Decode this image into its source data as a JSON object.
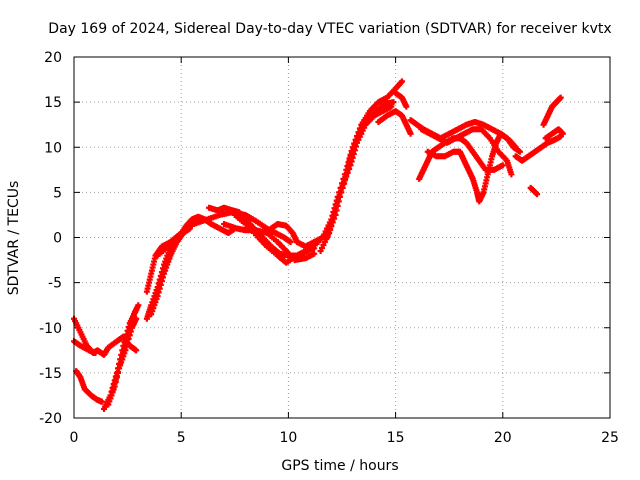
{
  "chart_data": {
    "type": "scatter",
    "title": "Day 169 of 2024, Sidereal Day-to-day VTEC variation (SDTVAR) for receiver kvtx",
    "xlabel": "GPS time / hours",
    "ylabel": "SDTVAR / TECUs",
    "xlim": [
      0,
      25
    ],
    "ylim": [
      -20,
      20
    ],
    "xticks": [
      0,
      5,
      10,
      15,
      20,
      25
    ],
    "yticks": [
      -20,
      -15,
      -10,
      -5,
      0,
      5,
      10,
      15,
      20
    ],
    "xtick_labels": [
      "0",
      "5",
      "10",
      "15",
      "20",
      "25"
    ],
    "ytick_labels": [
      "-20",
      "-15",
      "-10",
      "-5",
      "0",
      "5",
      "10",
      "15",
      "20"
    ],
    "grid": true,
    "marker_color": "#ff0000",
    "series": [
      {
        "values": [
          [
            0.0,
            -9.0
          ],
          [
            0.3,
            -10.5
          ],
          [
            0.6,
            -12.0
          ],
          [
            0.9,
            -12.8
          ],
          [
            1.1,
            -12.5
          ],
          [
            1.4,
            -13.0
          ],
          [
            1.6,
            -12.2
          ],
          [
            2.0,
            -11.5
          ],
          [
            2.3,
            -11.0
          ],
          [
            2.6,
            -12.0
          ],
          [
            2.9,
            -12.5
          ]
        ]
      },
      {
        "values": [
          [
            0.0,
            -11.5
          ],
          [
            0.3,
            -12.0
          ],
          [
            0.7,
            -12.5
          ],
          [
            1.0,
            -12.8
          ]
        ]
      },
      {
        "values": [
          [
            0.1,
            -14.8
          ],
          [
            0.3,
            -15.5
          ],
          [
            0.5,
            -16.8
          ],
          [
            0.8,
            -17.5
          ],
          [
            1.1,
            -18.0
          ],
          [
            1.3,
            -18.2
          ]
        ]
      },
      {
        "values": [
          [
            1.4,
            -19.0
          ],
          [
            1.7,
            -17.5
          ],
          [
            2.0,
            -15.0
          ],
          [
            2.3,
            -12.0
          ],
          [
            2.6,
            -9.5
          ],
          [
            2.9,
            -8.0
          ]
        ]
      },
      {
        "values": [
          [
            1.6,
            -18.5
          ],
          [
            1.9,
            -16.5
          ],
          [
            2.2,
            -13.5
          ],
          [
            2.5,
            -11.0
          ],
          [
            2.8,
            -8.5
          ],
          [
            3.0,
            -7.5
          ]
        ]
      },
      {
        "values": [
          [
            1.8,
            -17.0
          ],
          [
            2.1,
            -14.5
          ],
          [
            2.4,
            -12.5
          ],
          [
            2.7,
            -10.0
          ],
          [
            2.9,
            -9.0
          ]
        ]
      },
      {
        "values": [
          [
            3.4,
            -9.0
          ],
          [
            3.6,
            -7.5
          ],
          [
            3.9,
            -5.5
          ],
          [
            4.2,
            -3.0
          ],
          [
            4.5,
            -1.0
          ],
          [
            4.8,
            0.0
          ]
        ]
      },
      {
        "values": [
          [
            3.6,
            -8.5
          ],
          [
            3.9,
            -6.5
          ],
          [
            4.2,
            -4.0
          ],
          [
            4.5,
            -2.0
          ],
          [
            4.8,
            -0.5
          ],
          [
            5.1,
            0.5
          ],
          [
            5.4,
            1.0
          ]
        ]
      },
      {
        "values": [
          [
            3.4,
            -6.0
          ],
          [
            3.6,
            -4.0
          ],
          [
            3.8,
            -2.0
          ],
          [
            4.1,
            -1.0
          ],
          [
            4.5,
            -0.5
          ],
          [
            4.9,
            0.3
          ],
          [
            5.3,
            1.0
          ]
        ]
      },
      {
        "values": [
          [
            4.0,
            -5.0
          ],
          [
            4.3,
            -3.0
          ],
          [
            4.6,
            -1.2
          ],
          [
            4.9,
            0.0
          ],
          [
            5.2,
            1.2
          ],
          [
            5.5,
            2.0
          ],
          [
            5.8,
            2.3
          ],
          [
            6.1,
            2.0
          ],
          [
            6.4,
            1.5
          ],
          [
            6.8,
            1.0
          ],
          [
            7.2,
            0.5
          ],
          [
            7.5,
            1.0
          ]
        ]
      },
      {
        "values": [
          [
            3.9,
            -2.0
          ],
          [
            4.4,
            -1.0
          ],
          [
            5.0,
            0.5
          ],
          [
            5.6,
            1.5
          ],
          [
            6.2,
            2.0
          ],
          [
            6.8,
            2.5
          ],
          [
            7.4,
            2.8
          ],
          [
            8.0,
            2.5
          ],
          [
            8.5,
            1.8
          ],
          [
            9.0,
            1.0
          ],
          [
            9.4,
            0.5
          ],
          [
            9.8,
            0.0
          ],
          [
            10.1,
            -0.5
          ]
        ]
      },
      {
        "values": [
          [
            6.3,
            3.3
          ],
          [
            6.7,
            3.0
          ],
          [
            7.0,
            3.3
          ],
          [
            7.4,
            3.0
          ],
          [
            7.7,
            2.8
          ],
          [
            8.0,
            2.0
          ],
          [
            8.4,
            1.0
          ],
          [
            8.8,
            0.0
          ],
          [
            9.2,
            -1.0
          ],
          [
            9.6,
            -1.8
          ],
          [
            10.0,
            -2.0
          ],
          [
            10.4,
            -2.0
          ],
          [
            10.8,
            -1.5
          ],
          [
            11.2,
            -1.2
          ]
        ]
      },
      {
        "values": [
          [
            7.0,
            1.5
          ],
          [
            7.6,
            1.0
          ],
          [
            8.0,
            0.8
          ],
          [
            8.5,
            0.8
          ],
          [
            9.0,
            0.5
          ],
          [
            9.5,
            -0.5
          ],
          [
            9.9,
            -1.5
          ],
          [
            10.3,
            -2.5
          ],
          [
            10.8,
            -2.3
          ],
          [
            11.2,
            -1.8
          ]
        ]
      },
      {
        "values": [
          [
            7.5,
            2.5
          ],
          [
            8.0,
            1.5
          ],
          [
            8.6,
            0.0
          ],
          [
            9.0,
            -1.0
          ],
          [
            9.5,
            -2.0
          ],
          [
            9.9,
            -2.8
          ],
          [
            10.4,
            -2.0
          ],
          [
            10.9,
            -1.5
          ],
          [
            11.4,
            -0.5
          ]
        ]
      },
      {
        "values": [
          [
            9.2,
            1.0
          ],
          [
            9.5,
            1.5
          ],
          [
            9.9,
            1.3
          ],
          [
            10.2,
            0.5
          ],
          [
            10.4,
            -0.5
          ],
          [
            10.8,
            -1.0
          ],
          [
            11.2,
            -0.5
          ],
          [
            11.6,
            0.0
          ],
          [
            12.0,
            2.0
          ],
          [
            12.3,
            4.5
          ],
          [
            12.7,
            7.5
          ],
          [
            13.0,
            10.0
          ],
          [
            13.4,
            12.5
          ],
          [
            13.8,
            14.0
          ],
          [
            14.2,
            15.0
          ],
          [
            14.6,
            15.5
          ],
          [
            15.0,
            16.5
          ],
          [
            15.3,
            17.3
          ]
        ]
      },
      {
        "values": [
          [
            11.5,
            -1.5
          ],
          [
            11.9,
            0.5
          ],
          [
            12.2,
            3.0
          ],
          [
            12.6,
            6.0
          ],
          [
            12.9,
            9.0
          ],
          [
            13.3,
            11.5
          ],
          [
            13.7,
            13.0
          ],
          [
            14.1,
            14.0
          ],
          [
            14.5,
            14.8
          ],
          [
            14.9,
            15.0
          ]
        ]
      },
      {
        "values": [
          [
            11.8,
            0.0
          ],
          [
            12.2,
            2.5
          ],
          [
            12.5,
            5.5
          ],
          [
            12.9,
            8.0
          ],
          [
            13.2,
            10.5
          ],
          [
            13.6,
            12.5
          ],
          [
            14.0,
            13.5
          ],
          [
            14.4,
            14.0
          ],
          [
            14.8,
            14.5
          ]
        ]
      },
      {
        "values": [
          [
            14.2,
            12.8
          ],
          [
            14.6,
            13.5
          ],
          [
            15.0,
            14.0
          ],
          [
            15.3,
            13.5
          ],
          [
            15.5,
            12.5
          ],
          [
            15.7,
            11.5
          ]
        ]
      },
      {
        "values": [
          [
            15.5,
            14.5
          ],
          [
            15.3,
            15.5
          ],
          [
            15.0,
            16.0
          ]
        ]
      },
      {
        "values": [
          [
            15.7,
            13.0
          ],
          [
            16.0,
            12.5
          ],
          [
            16.3,
            12.0
          ],
          [
            16.7,
            11.5
          ],
          [
            17.1,
            11.0
          ],
          [
            17.5,
            11.5
          ],
          [
            17.9,
            12.0
          ],
          [
            18.3,
            12.5
          ],
          [
            18.7,
            12.8
          ],
          [
            19.1,
            12.5
          ],
          [
            19.5,
            12.0
          ],
          [
            19.9,
            11.5
          ],
          [
            20.3,
            10.8
          ],
          [
            20.6,
            10.0
          ]
        ]
      },
      {
        "values": [
          [
            16.1,
            6.5
          ],
          [
            16.3,
            7.5
          ],
          [
            16.5,
            8.5
          ],
          [
            16.7,
            9.5
          ],
          [
            17.0,
            10.0
          ],
          [
            17.3,
            10.5
          ],
          [
            17.7,
            11.0
          ],
          [
            18.0,
            11.0
          ],
          [
            18.3,
            10.5
          ],
          [
            18.6,
            9.5
          ],
          [
            18.9,
            8.5
          ],
          [
            19.2,
            7.5
          ],
          [
            19.6,
            7.5
          ],
          [
            20.0,
            8.0
          ]
        ]
      },
      {
        "values": [
          [
            16.5,
            9.5
          ],
          [
            16.9,
            9.0
          ],
          [
            17.3,
            9.0
          ],
          [
            17.7,
            9.5
          ],
          [
            18.0,
            9.5
          ],
          [
            18.2,
            8.5
          ],
          [
            18.4,
            7.5
          ],
          [
            18.6,
            6.5
          ],
          [
            18.8,
            5.0
          ],
          [
            18.9,
            4.0
          ],
          [
            19.1,
            5.0
          ],
          [
            19.3,
            7.0
          ],
          [
            19.5,
            9.0
          ],
          [
            19.7,
            10.5
          ],
          [
            19.9,
            11.5
          ],
          [
            20.2,
            11.0
          ],
          [
            20.5,
            10.0
          ],
          [
            20.8,
            9.5
          ]
        ]
      },
      {
        "values": [
          [
            16.2,
            12.0
          ],
          [
            16.6,
            11.5
          ],
          [
            17.0,
            11.0
          ],
          [
            17.4,
            10.5
          ],
          [
            17.8,
            11.0
          ],
          [
            18.2,
            11.5
          ],
          [
            18.6,
            12.0
          ],
          [
            19.0,
            12.0
          ],
          [
            19.4,
            11.0
          ],
          [
            19.8,
            9.5
          ],
          [
            20.2,
            8.5
          ],
          [
            20.4,
            7.0
          ]
        ]
      },
      {
        "values": [
          [
            20.6,
            9.0
          ],
          [
            20.9,
            8.5
          ],
          [
            21.2,
            9.0
          ],
          [
            21.5,
            9.5
          ],
          [
            21.8,
            10.0
          ],
          [
            22.1,
            10.5
          ],
          [
            22.4,
            10.8
          ],
          [
            22.7,
            11.2
          ]
        ]
      },
      {
        "values": [
          [
            21.3,
            5.5
          ],
          [
            21.6,
            4.8
          ]
        ]
      },
      {
        "values": [
          [
            21.9,
            12.5
          ],
          [
            22.1,
            13.5
          ],
          [
            22.3,
            14.5
          ],
          [
            22.5,
            15.0
          ],
          [
            22.7,
            15.5
          ]
        ]
      },
      {
        "values": [
          [
            22.0,
            11.0
          ],
          [
            22.3,
            11.5
          ],
          [
            22.6,
            12.0
          ],
          [
            22.8,
            11.5
          ]
        ]
      }
    ]
  }
}
